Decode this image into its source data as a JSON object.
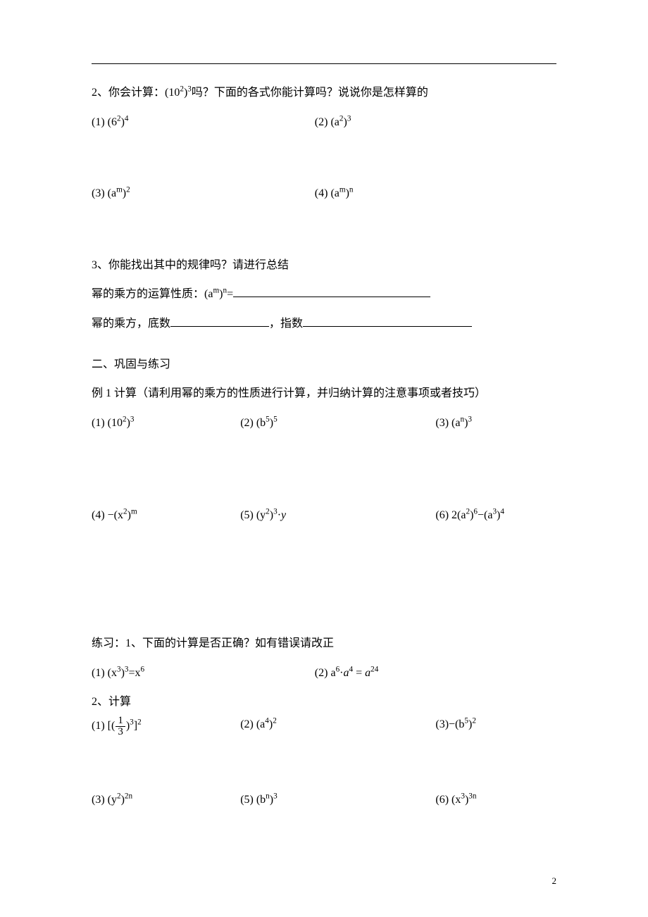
{
  "q2": {
    "prompt_pre": "2、你会计算：",
    "prompt_math": "(10<sup>2</sup>)<sup>3</sup>",
    "prompt_post": "吗？下面的各式你能计算吗？说说你是怎样算的",
    "items": {
      "a": "(1)  (6<sup>2</sup>)<sup>4</sup>",
      "b": "(2)  (a<sup>2</sup>)<sup>3</sup>",
      "c": "(3)  (a<sup>m</sup>)<sup>2</sup>",
      "d": "(4)  (a<sup>m</sup>)<sup>n</sup>"
    }
  },
  "q3": {
    "line1": "3、你能找出其中的规律吗？请进行总结",
    "rule_pre": "幂的乘方的运算性质：(a<sup>m</sup>)<sup>n</sup>=",
    "base_pre": "幂的乘方，底数",
    "base_mid": "，指数",
    "blank_len1": 280,
    "blank_len2": 140,
    "blank_len3": 240
  },
  "sec2": {
    "heading": "二、巩固与练习",
    "ex1_intro": "例 1  计算（请利用幂的乘方的性质进行计算，并归纳计算的注意事项或者技巧）",
    "row1": {
      "a": "(1)  (10<sup>2</sup>)<sup>3</sup>",
      "b": "(2)  (b<sup>5</sup>)<sup>5</sup>",
      "c": "(3)  (a<sup>n</sup>)<sup>3</sup>"
    },
    "row2": {
      "a": "(4)  −(x<sup>2</sup>)<sup>m</sup>",
      "b": "(5)  (y<sup>2</sup>)<sup>3</sup>·<span class=\"ital\">y</span>",
      "c": "(6)  2(a<sup>2</sup>)<sup>6</sup>−(a<sup>3</sup>)<sup>4</sup>"
    }
  },
  "practice": {
    "heading": "练习：1、下面的计算是否正确？如有错误请改正",
    "row1": {
      "a": "(1)  (x<sup>3</sup>)<sup>3</sup>=x<sup>6</sup>",
      "b": "(2)  a<sup>6</sup>·<span class=\"ital\">a</span><sup>4</sup> = <span class=\"ital\">a</span><sup>24</sup>"
    },
    "calc_heading": "2、计算",
    "row2": {
      "b": "(2)  (a<sup>4</sup>)<sup>2</sup>",
      "c": "(3)−(b<sup>5</sup>)<sup>2</sup>"
    },
    "row3": {
      "a": "(3)  (y<sup>2</sup>)<sup>2n</sup>",
      "b": "(5)  (b<sup>n</sup>)<sup>3</sup>",
      "c": "(6)  (x<sup>3</sup>)<sup>3n</sup>"
    },
    "frac1": {
      "pre": "(1)  [(",
      "num": "1",
      "den": "3",
      "post": ")<sup>3</sup>]<sup>2</sup>"
    }
  },
  "page_number": "2"
}
